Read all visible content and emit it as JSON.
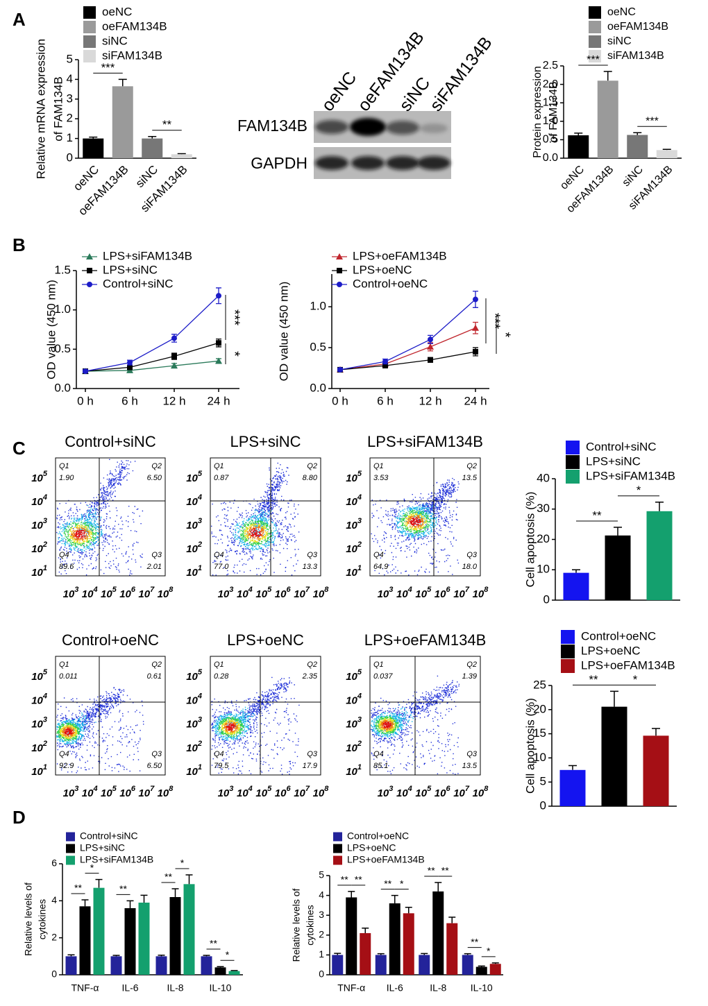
{
  "panel_labels": [
    "A",
    "B",
    "C",
    "D"
  ],
  "western_blot": {
    "lanes": [
      "oeNC",
      "oeFAM134B",
      "siNC",
      "siFAM134B"
    ],
    "rows": [
      "FAM134B",
      "GAPDH"
    ]
  },
  "flow_axis": {
    "base": "10",
    "y_exponents": [
      "5",
      "4",
      "3",
      "2",
      "1"
    ],
    "x_exponents": [
      "3",
      "4",
      "5",
      "6",
      "7",
      "8"
    ]
  },
  "flow_plots": [
    {
      "title": "Control+siNC",
      "quadrants": [
        {
          "name": "Q1",
          "value": "1.90"
        },
        {
          "name": "Q2",
          "value": "6.50"
        },
        {
          "name": "Q3",
          "value": "2.01"
        },
        {
          "name": "Q4",
          "value": "89.6"
        }
      ]
    },
    {
      "title": "LPS+siNC",
      "quadrants": [
        {
          "name": "Q1",
          "value": "0.87"
        },
        {
          "name": "Q2",
          "value": "8.80"
        },
        {
          "name": "Q3",
          "value": "13.3"
        },
        {
          "name": "Q4",
          "value": "77.0"
        }
      ]
    },
    {
      "title": "LPS+siFAM134B",
      "quadrants": [
        {
          "name": "Q1",
          "value": "3.53"
        },
        {
          "name": "Q2",
          "value": "13.5"
        },
        {
          "name": "Q3",
          "value": "18.0"
        },
        {
          "name": "Q4",
          "value": "64.9"
        }
      ]
    },
    {
      "title": "Control+oeNC",
      "quadrants": [
        {
          "name": "Q1",
          "value": "0.011"
        },
        {
          "name": "Q2",
          "value": "0.61"
        },
        {
          "name": "Q3",
          "value": "6.50"
        },
        {
          "name": "Q4",
          "value": "92.9"
        }
      ]
    },
    {
      "title": "LPS+oeNC",
      "quadrants": [
        {
          "name": "Q1",
          "value": "0.28"
        },
        {
          "name": "Q2",
          "value": "2.35"
        },
        {
          "name": "Q3",
          "value": "17.9"
        },
        {
          "name": "Q4",
          "value": "79.5"
        }
      ]
    },
    {
      "title": "LPS+oeFAM134B",
      "quadrants": [
        {
          "name": "Q1",
          "value": "0.037"
        },
        {
          "name": "Q2",
          "value": "1.39"
        },
        {
          "name": "Q3",
          "value": "13.5"
        },
        {
          "name": "Q4",
          "value": "85.1"
        }
      ]
    }
  ],
  "chart_data": [
    {
      "type": "bar",
      "y_label": [
        "Relative mRNA expression",
        "of FAM134B"
      ],
      "categories": [
        "oeNC",
        "oeFAM134B",
        "siNC",
        "siFAM134B"
      ],
      "values": [
        1.0,
        3.65,
        1.0,
        0.2
      ],
      "errors": [
        0.07,
        0.35,
        0.1,
        0.03
      ],
      "colors": [
        "#000000",
        "#9a9a9a",
        "#777777",
        "#d9d9d9"
      ],
      "ylim": [
        0,
        5
      ],
      "yticks": [
        0,
        1,
        2,
        3,
        4,
        5
      ],
      "annotations": [
        "***",
        "**"
      ]
    },
    {
      "type": "bar",
      "y_label": [
        "Protein expression",
        "of FAM134B"
      ],
      "categories": [
        "oeNC",
        "oeFAM134B",
        "siNC",
        "siFAM134B"
      ],
      "values": [
        0.62,
        2.1,
        0.63,
        0.22
      ],
      "errors": [
        0.06,
        0.25,
        0.06,
        0.02
      ],
      "colors": [
        "#000000",
        "#9a9a9a",
        "#777777",
        "#d9d9d9"
      ],
      "ylim": [
        0,
        2.5
      ],
      "yticks": [
        {
          "value": 0,
          "label": "0.0"
        },
        0.5,
        {
          "value": 1,
          "label": "1.0"
        },
        1.5,
        {
          "value": 2,
          "label": "2.0"
        },
        2.5
      ],
      "annotations": [
        "***",
        "***"
      ]
    },
    {
      "type": "line",
      "y_label": [
        "OD value (450 nm)"
      ],
      "categories": [
        "0 h",
        "6 h",
        "12 h",
        "24 h"
      ],
      "series": [
        {
          "name": "LPS+siFAM134B",
          "color": "#2a7a5a",
          "marker": "triangle",
          "values": [
            0.22,
            0.23,
            0.29,
            0.35
          ],
          "errors": [
            0.02,
            0.02,
            0.03,
            0.03
          ]
        },
        {
          "name": "LPS+siNC",
          "color": "#000000",
          "marker": "square",
          "values": [
            0.22,
            0.27,
            0.41,
            0.58
          ],
          "errors": [
            0.02,
            0.03,
            0.04,
            0.05
          ]
        },
        {
          "name": "Control+siNC",
          "color": "#1c1cc8",
          "marker": "circle",
          "values": [
            0.22,
            0.33,
            0.64,
            1.18
          ],
          "errors": [
            0.02,
            0.03,
            0.05,
            0.1
          ]
        }
      ],
      "ylim": [
        0,
        1.5
      ],
      "yticks": [
        {
          "value": 0,
          "label": "0.0"
        },
        0.5,
        {
          "value": 1,
          "label": "1.0"
        },
        1.5
      ],
      "annotations": [
        "***",
        "*"
      ]
    },
    {
      "type": "line",
      "y_label": [
        "OD value (450 nm)"
      ],
      "categories": [
        "0 h",
        "6 h",
        "12 h",
        "24 h"
      ],
      "series": [
        {
          "name": "LPS+oeFAM134B",
          "color": "#c0262d",
          "marker": "triangle",
          "values": [
            0.23,
            0.3,
            0.51,
            0.74
          ],
          "errors": [
            0.02,
            0.03,
            0.05,
            0.07
          ]
        },
        {
          "name": "LPS+oeNC",
          "color": "#000000",
          "marker": "square",
          "values": [
            0.23,
            0.28,
            0.35,
            0.45
          ],
          "errors": [
            0.02,
            0.02,
            0.03,
            0.05
          ]
        },
        {
          "name": "Control+oeNC",
          "color": "#1c1cc8",
          "marker": "circle",
          "values": [
            0.23,
            0.33,
            0.6,
            1.09
          ],
          "errors": [
            0.02,
            0.03,
            0.05,
            0.1
          ]
        }
      ],
      "ylim": [
        0,
        1.4
      ],
      "yticks": [
        {
          "value": 0,
          "label": "0.0"
        },
        0.5,
        {
          "value": 1,
          "label": "1.0"
        }
      ],
      "annotations": [
        "***",
        "*"
      ]
    },
    {
      "type": "bar",
      "y_label": [
        "Cell apoptosis (%)"
      ],
      "categories": [
        "Control+siNC",
        "LPS+siNC",
        "LPS+siFAM134B"
      ],
      "values": [
        9,
        21.3,
        29.3
      ],
      "errors": [
        1,
        2.7,
        3
      ],
      "colors": [
        "#1414f0",
        "#000000",
        "#14a06e"
      ],
      "ylim": [
        0,
        40
      ],
      "yticks": [
        0,
        10,
        20,
        30,
        40
      ],
      "annotations": [
        "**",
        "*"
      ]
    },
    {
      "type": "bar",
      "y_label": [
        "Cell apoptosis (%)"
      ],
      "categories": [
        "Control+oeNC",
        "LPS+oeNC",
        "LPS+oeFAM134B"
      ],
      "values": [
        7.5,
        20.6,
        14.6
      ],
      "errors": [
        0.9,
        3.2,
        1.5
      ],
      "colors": [
        "#1414f0",
        "#000000",
        "#a50f15"
      ],
      "ylim": [
        0,
        25
      ],
      "yticks": [
        0,
        5,
        10,
        15,
        20,
        25
      ],
      "annotations": [
        "**",
        "*"
      ]
    },
    {
      "type": "grouped_bar",
      "y_label": [
        "Relative levels of",
        "cytokines"
      ],
      "categories": [
        "TNF-α",
        "IL-6",
        "IL-8",
        "IL-10"
      ],
      "series": [
        {
          "name": "Control+siNC",
          "color": "#23239a",
          "values": [
            1,
            1,
            1,
            1
          ],
          "errors": [
            0.08,
            0.05,
            0.06,
            0.05
          ]
        },
        {
          "name": "LPS+siNC",
          "color": "#000000",
          "values": [
            3.7,
            3.6,
            4.2,
            0.4
          ],
          "errors": [
            0.35,
            0.4,
            0.45,
            0.04
          ]
        },
        {
          "name": "LPS+siFAM134B",
          "color": "#14a06e",
          "values": [
            4.7,
            3.9,
            4.9,
            0.2
          ],
          "errors": [
            0.45,
            0.4,
            0.5,
            0.03
          ]
        }
      ],
      "ylim": [
        0,
        6
      ],
      "yticks": [
        0,
        2,
        4,
        6
      ],
      "annotations": [
        "**",
        "*",
        "**",
        "**",
        "*",
        "**",
        "*"
      ]
    },
    {
      "type": "grouped_bar",
      "y_label": [
        "Relative levels of",
        "cytokines"
      ],
      "categories": [
        "TNF-α",
        "IL-6",
        "IL-8",
        "IL-10"
      ],
      "series": [
        {
          "name": "Control+oeNC",
          "color": "#23239a",
          "values": [
            1,
            1,
            1,
            1
          ],
          "errors": [
            0.08,
            0.06,
            0.07,
            0.06
          ]
        },
        {
          "name": "LPS+oeNC",
          "color": "#000000",
          "values": [
            3.9,
            3.6,
            4.2,
            0.4
          ],
          "errors": [
            0.3,
            0.4,
            0.45,
            0.04
          ]
        },
        {
          "name": "LPS+oeFAM134B",
          "color": "#a50f15",
          "values": [
            2.1,
            3.1,
            2.6,
            0.55
          ],
          "errors": [
            0.25,
            0.3,
            0.3,
            0.05
          ]
        }
      ],
      "ylim": [
        0,
        5
      ],
      "yticks": [
        0,
        1,
        2,
        3,
        4,
        5
      ],
      "annotations": [
        "**",
        "**",
        "**",
        "*",
        "**",
        "**",
        "**",
        "*"
      ]
    }
  ]
}
